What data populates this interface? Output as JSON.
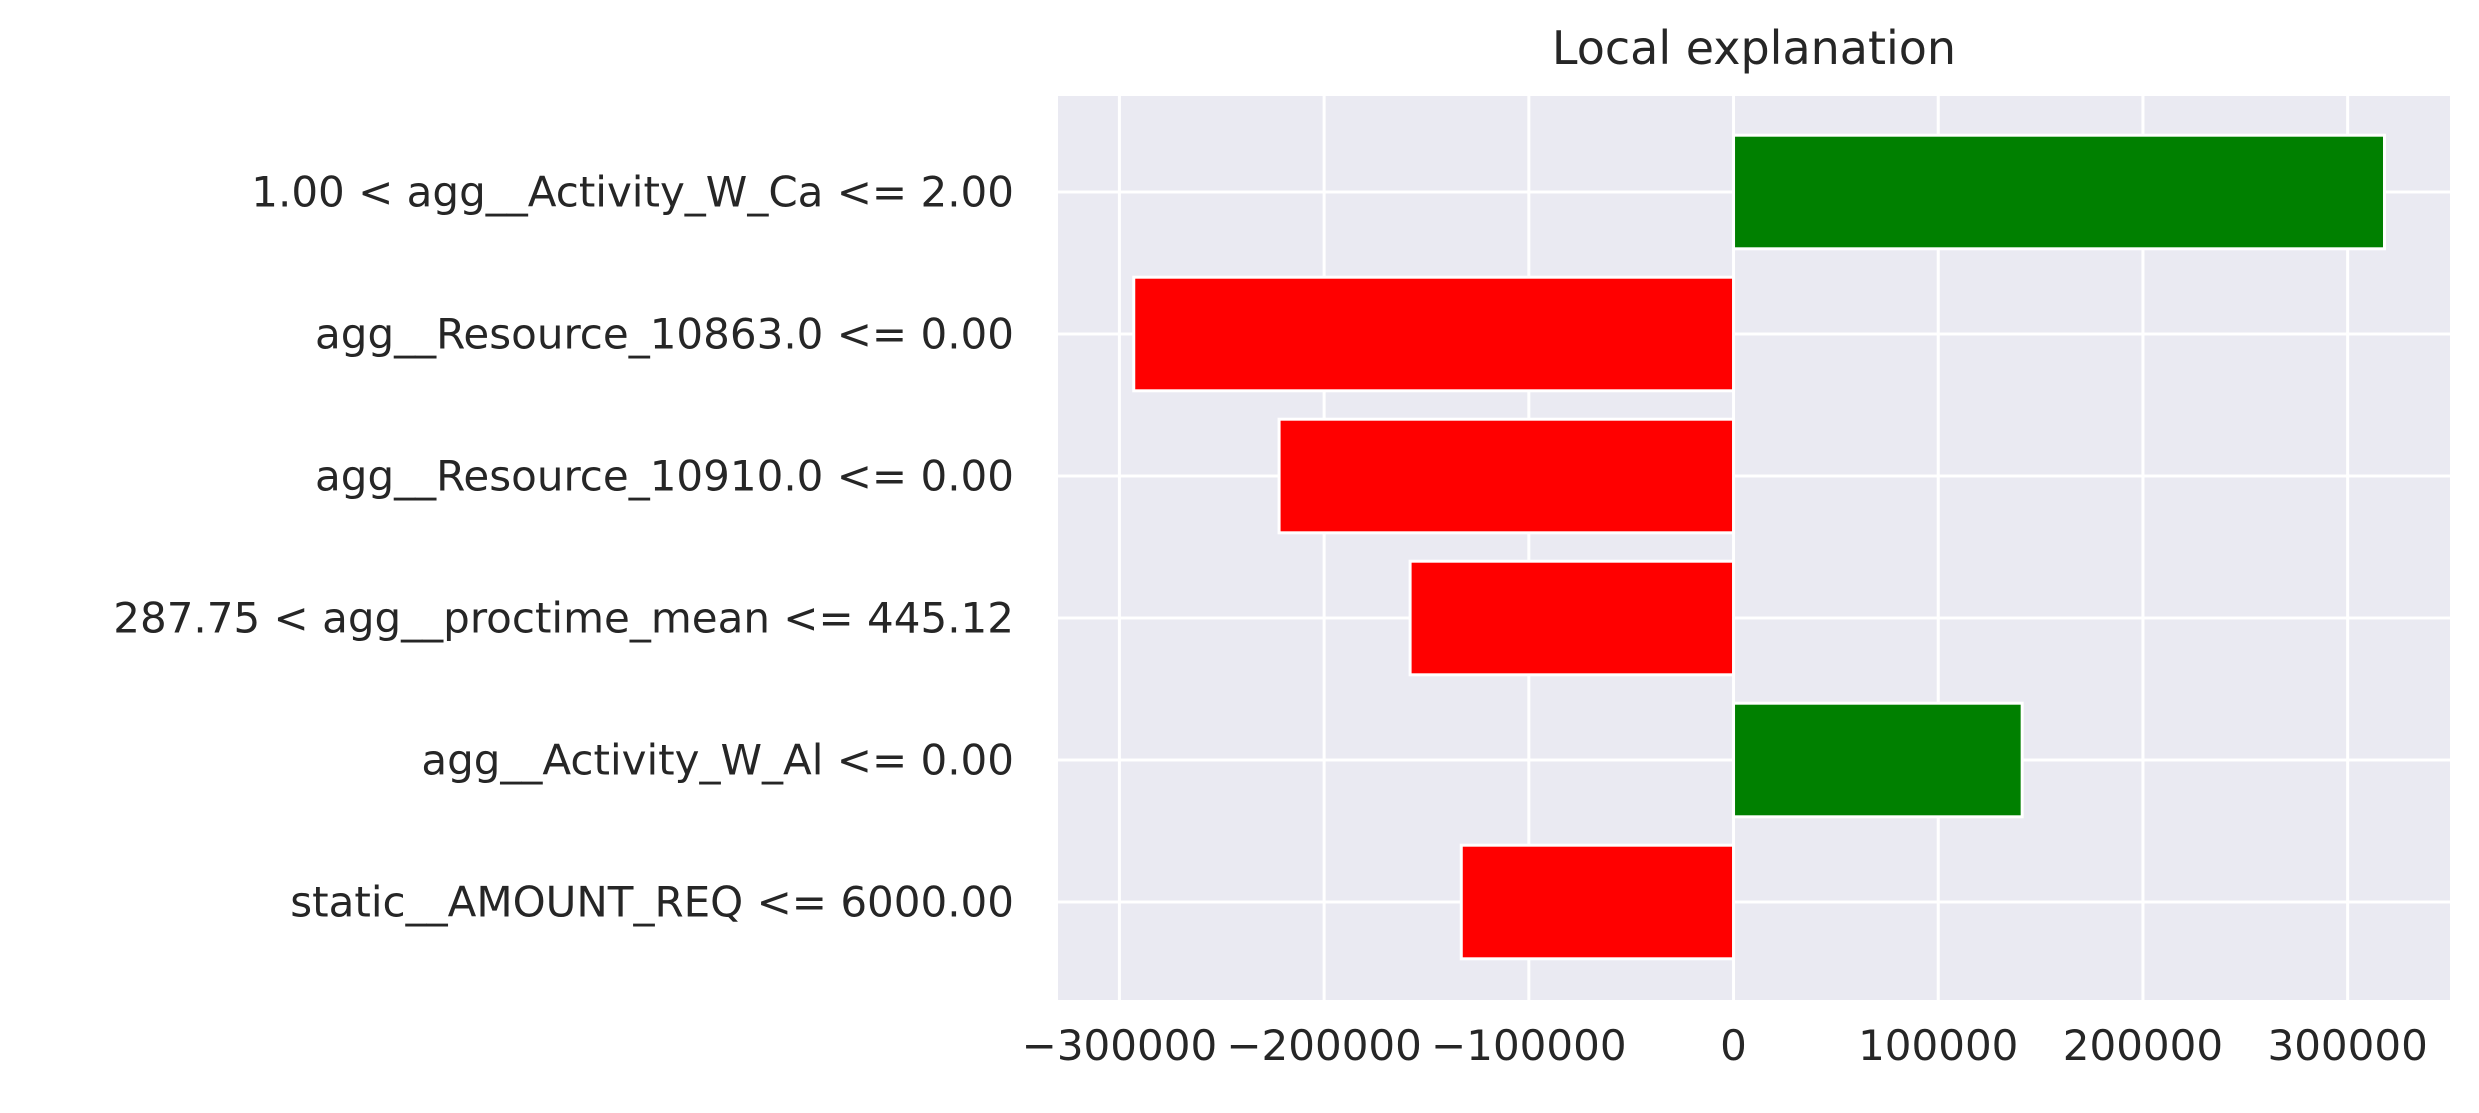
{
  "chart_data": {
    "type": "bar",
    "orientation": "horizontal",
    "title": "Local explanation",
    "xlabel": "",
    "ylabel": "",
    "categories": [
      "1.00 < agg__Activity_W_Ca <= 2.00",
      "agg__Resource_10863.0 <= 0.00",
      "agg__Resource_10910.0 <= 0.00",
      "287.75 < agg__proctime_mean <= 445.12",
      "agg__Activity_W_Al <= 0.00",
      "static__AMOUNT_REQ <= 6000.00"
    ],
    "values": [
      318000,
      -293000,
      -222000,
      -158000,
      141000,
      -133000
    ],
    "xlim": [
      -330000,
      350000
    ],
    "xticks": [
      -300000,
      -200000,
      -100000,
      0,
      100000,
      200000,
      300000
    ],
    "xtick_labels": [
      "−300000",
      "−200000",
      "−100000",
      "0",
      "100000",
      "200000",
      "300000"
    ],
    "grid": true,
    "legend": "none",
    "colors": {
      "positive": "#008000",
      "negative": "#ff0000",
      "plot_background": "#eaeaf2",
      "grid": "#ffffff",
      "text": "#262626"
    }
  }
}
